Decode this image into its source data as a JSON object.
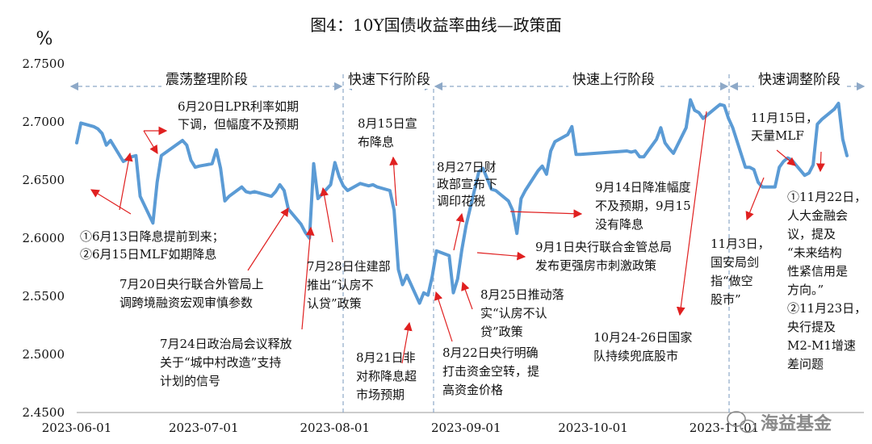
{
  "chart_data": {
    "type": "line",
    "title": "图4：10Y国债收益率曲线—政策面",
    "ylabel": "%",
    "xlabel": "",
    "ylim": [
      2.45,
      2.75
    ],
    "yticks": [
      "2.4500",
      "2.5000",
      "2.5500",
      "2.6000",
      "2.6500",
      "2.7000",
      "2.7500"
    ],
    "xticks": [
      "2023-06-01",
      "2023-07-01",
      "2023-08-01",
      "2023-09-01",
      "2023-10-01",
      "2023-11-01"
    ],
    "grid": false,
    "legend": "none",
    "line_color": "#5b9bd5",
    "x": [
      "2023-06-01",
      "2023-06-02",
      "2023-06-05",
      "2023-06-06",
      "2023-06-07",
      "2023-06-08",
      "2023-06-09",
      "2023-06-12",
      "2023-06-13",
      "2023-06-14",
      "2023-06-15",
      "2023-06-16",
      "2023-06-19",
      "2023-06-20",
      "2023-06-21",
      "2023-06-26",
      "2023-06-27",
      "2023-06-28",
      "2023-06-29",
      "2023-06-30",
      "2023-07-03",
      "2023-07-04",
      "2023-07-05",
      "2023-07-06",
      "2023-07-07",
      "2023-07-10",
      "2023-07-11",
      "2023-07-12",
      "2023-07-13",
      "2023-07-14",
      "2023-07-17",
      "2023-07-18",
      "2023-07-19",
      "2023-07-20",
      "2023-07-21",
      "2023-07-24",
      "2023-07-25",
      "2023-07-26",
      "2023-07-27",
      "2023-07-28",
      "2023-07-31",
      "2023-08-01",
      "2023-08-02",
      "2023-08-03",
      "2023-08-04",
      "2023-08-07",
      "2023-08-08",
      "2023-08-09",
      "2023-08-10",
      "2023-08-11",
      "2023-08-14",
      "2023-08-15",
      "2023-08-16",
      "2023-08-17",
      "2023-08-18",
      "2023-08-21",
      "2023-08-22",
      "2023-08-23",
      "2023-08-24",
      "2023-08-25",
      "2023-08-28",
      "2023-08-29",
      "2023-08-30",
      "2023-08-31",
      "2023-09-01",
      "2023-09-04",
      "2023-09-05",
      "2023-09-06",
      "2023-09-07",
      "2023-09-08",
      "2023-09-11",
      "2023-09-12",
      "2023-09-13",
      "2023-09-14",
      "2023-09-15",
      "2023-09-18",
      "2023-09-19",
      "2023-09-20",
      "2023-09-21",
      "2023-09-22",
      "2023-09-25",
      "2023-09-26",
      "2023-09-27",
      "2023-09-28",
      "2023-10-09",
      "2023-10-10",
      "2023-10-11",
      "2023-10-12",
      "2023-10-13",
      "2023-10-16",
      "2023-10-17",
      "2023-10-18",
      "2023-10-19",
      "2023-10-20",
      "2023-10-23",
      "2023-10-24",
      "2023-10-25",
      "2023-10-26",
      "2023-10-27",
      "2023-10-30",
      "2023-10-31",
      "2023-11-01",
      "2023-11-02",
      "2023-11-03",
      "2023-11-06",
      "2023-11-07",
      "2023-11-08",
      "2023-11-09",
      "2023-11-10",
      "2023-11-13",
      "2023-11-14",
      "2023-11-15",
      "2023-11-16",
      "2023-11-17",
      "2023-11-20",
      "2023-11-21",
      "2023-11-22",
      "2023-11-23",
      "2023-11-24",
      "2023-11-27",
      "2023-11-28",
      "2023-11-29",
      "2023-11-30"
    ],
    "values": [
      2.682,
      2.699,
      2.696,
      2.694,
      2.69,
      2.68,
      2.684,
      2.666,
      2.668,
      2.67,
      2.671,
      2.636,
      2.613,
      2.648,
      2.671,
      2.684,
      2.68,
      2.667,
      2.661,
      2.662,
      2.664,
      2.676,
      2.66,
      2.632,
      2.636,
      2.644,
      2.64,
      2.639,
      2.64,
      2.639,
      2.636,
      2.64,
      2.646,
      2.641,
      2.625,
      2.612,
      2.605,
      2.6,
      2.664,
      2.634,
      2.646,
      2.665,
      2.653,
      2.645,
      2.641,
      2.647,
      2.646,
      2.645,
      2.646,
      2.644,
      2.641,
      2.624,
      2.573,
      2.56,
      2.568,
      2.544,
      2.553,
      2.551,
      2.567,
      2.589,
      2.585,
      2.553,
      2.565,
      2.59,
      2.611,
      2.657,
      2.66,
      2.651,
      2.642,
      2.641,
      2.632,
      2.624,
      2.604,
      2.634,
      2.641,
      2.658,
      2.662,
      2.655,
      2.675,
      2.683,
      2.689,
      2.696,
      2.672,
      2.672,
      2.675,
      2.674,
      2.675,
      2.67,
      2.67,
      2.685,
      2.695,
      2.682,
      2.677,
      2.673,
      2.695,
      2.719,
      2.71,
      2.708,
      2.703,
      2.712,
      2.715,
      2.714,
      2.703,
      2.695,
      2.661,
      2.661,
      2.659,
      2.648,
      2.644,
      2.644,
      2.661,
      2.666,
      2.669,
      2.667,
      2.654,
      2.656,
      2.663,
      2.698,
      2.702,
      2.711,
      2.716,
      2.685,
      2.671
    ]
  },
  "phases": [
    {
      "label": "震荡整理阶段"
    },
    {
      "label": "快速下行阶段"
    },
    {
      "label": "快速上行阶段"
    },
    {
      "label": "快速调整阶段"
    }
  ],
  "annotations": [
    {
      "lines": [
        "①6月13日降息提前到来；",
        "②6月15日MLF如期降息"
      ]
    },
    {
      "lines": [
        "6月20日LPR利率如期",
        "下调，但幅度不及预期"
      ]
    },
    {
      "lines": [
        "7月20日央行联合外管局上",
        "调跨境融资宏观审慎参数"
      ]
    },
    {
      "lines": [
        "7月24日政治局会议释放",
        "关于“城中村改造”支持",
        "计划的信号"
      ]
    },
    {
      "lines": [
        "7月28日住建部",
        "推出“认房不",
        "认贷”政策"
      ]
    },
    {
      "lines": [
        "8月15日宣",
        "布降息"
      ]
    },
    {
      "lines": [
        "8月21日非",
        "对称降息超",
        "市场预期"
      ]
    },
    {
      "lines": [
        "8月22日央行明确",
        "打击资金空转，提",
        "高资金价格"
      ]
    },
    {
      "lines": [
        "8月25日推动落",
        "实“认房不认",
        "贷”政策"
      ]
    },
    {
      "lines": [
        "8月27日财",
        "政部宣布下",
        "调印花税"
      ]
    },
    {
      "lines": [
        "9月1日央行联合金管总局",
        "发布更强房市刺激政策"
      ]
    },
    {
      "lines": [
        "9月14日降准幅度",
        "不及预期，9月15",
        "没有降息"
      ]
    },
    {
      "lines": [
        "10月24-26日国家",
        "队持续兜底股市"
      ]
    },
    {
      "lines": [
        "11月3日，",
        "国安局剑",
        "指“做空",
        "股市”"
      ]
    },
    {
      "lines": [
        "11月15日，",
        "天量MLF"
      ]
    },
    {
      "lines": [
        "①11月22日，",
        "人大金融会",
        "议，提及",
        "“未来结构",
        "性紧信用是",
        "方向。”",
        "②11月23日，",
        "央行提及",
        "M2-M1增速",
        "差问题"
      ]
    }
  ],
  "watermark": "海益基金"
}
